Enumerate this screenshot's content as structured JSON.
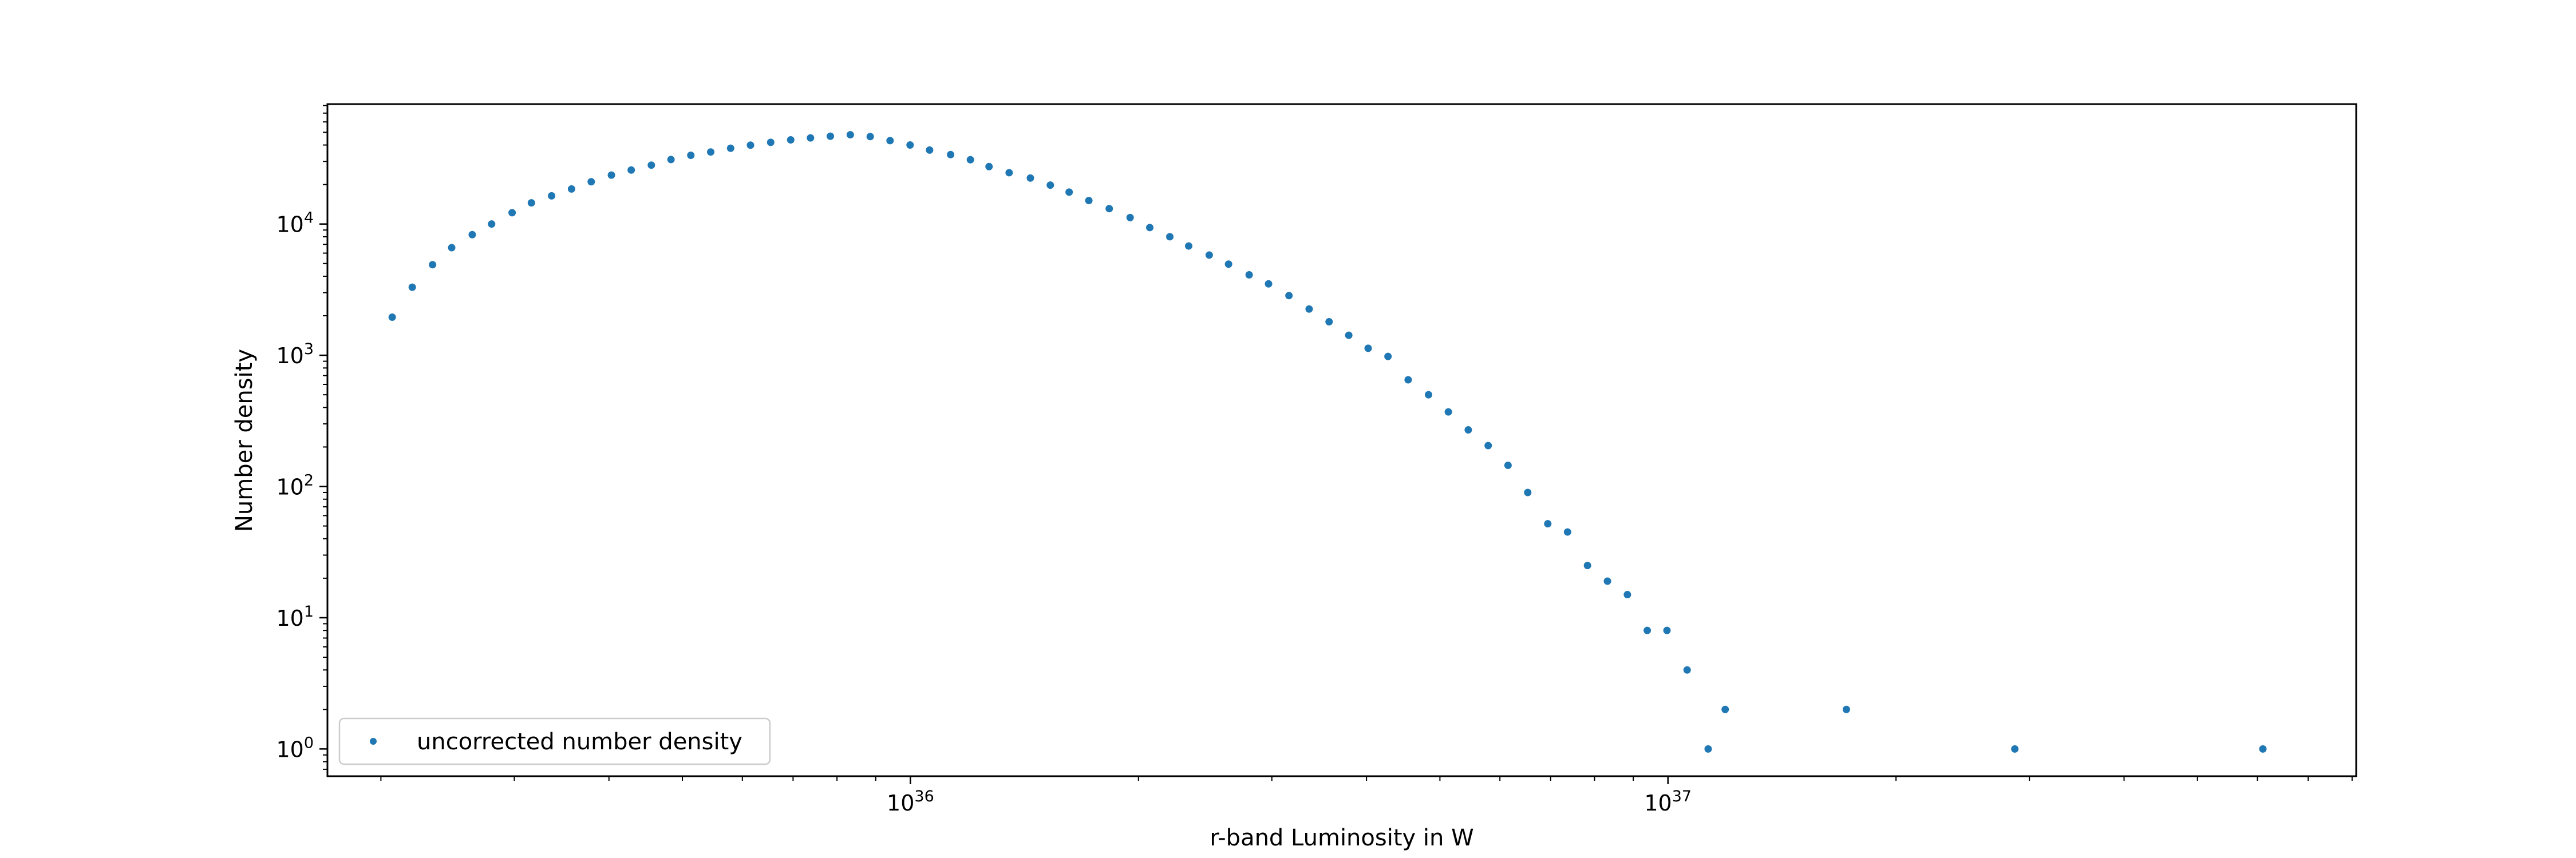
{
  "chart_data": {
    "type": "scatter",
    "xscale": "log",
    "yscale": "log",
    "xlabel": "r-band Luminosity in W",
    "ylabel": "Number density",
    "xlim": [
      1.7e+35,
      8.1e+37
    ],
    "ylim": [
      0.62,
      82000
    ],
    "grid": false,
    "legend_position": "lower-left",
    "marker_color": "#1f77b4",
    "x_ticks": [
      {
        "mantissa": "10",
        "exp": "36",
        "value": 1e+36
      },
      {
        "mantissa": "10",
        "exp": "37",
        "value": 1e+37
      }
    ],
    "y_ticks": [
      {
        "mantissa": "10",
        "exp": "0",
        "value": 1
      },
      {
        "mantissa": "10",
        "exp": "1",
        "value": 10
      },
      {
        "mantissa": "10",
        "exp": "2",
        "value": 100
      },
      {
        "mantissa": "10",
        "exp": "3",
        "value": 1000
      },
      {
        "mantissa": "10",
        "exp": "4",
        "value": 10000
      }
    ],
    "series": [
      {
        "name": "uncorrected number density",
        "points": [
          [
            2.07e+35,
            1950
          ],
          [
            2.2e+35,
            3300
          ],
          [
            2.34e+35,
            4900
          ],
          [
            2.48e+35,
            6600
          ],
          [
            2.64e+35,
            8300
          ],
          [
            2.8e+35,
            10000
          ],
          [
            2.98e+35,
            12200
          ],
          [
            3.16e+35,
            14500
          ],
          [
            3.36e+35,
            16400
          ],
          [
            3.57e+35,
            18500
          ],
          [
            3.79e+35,
            21000
          ],
          [
            4.03e+35,
            23600
          ],
          [
            4.28e+35,
            25800
          ],
          [
            4.55e+35,
            28100
          ],
          [
            4.83e+35,
            31000
          ],
          [
            5.13e+35,
            33400
          ],
          [
            5.45e+35,
            35400
          ],
          [
            5.79e+35,
            37800
          ],
          [
            6.15e+35,
            39900
          ],
          [
            6.54e+35,
            41900
          ],
          [
            6.95e+35,
            43800
          ],
          [
            7.38e+35,
            45300
          ],
          [
            7.84e+35,
            46700
          ],
          [
            8.33e+35,
            47900
          ],
          [
            8.85e+35,
            46400
          ],
          [
            9.4e+35,
            43200
          ],
          [
            9.99e+35,
            40000
          ],
          [
            1.06e+36,
            36600
          ],
          [
            1.13e+36,
            33800
          ],
          [
            1.2e+36,
            30900
          ],
          [
            1.27e+36,
            27400
          ],
          [
            1.35e+36,
            24600
          ],
          [
            1.44e+36,
            22400
          ],
          [
            1.53e+36,
            19800
          ],
          [
            1.62e+36,
            17500
          ],
          [
            1.72e+36,
            15100
          ],
          [
            1.83e+36,
            13100
          ],
          [
            1.95e+36,
            11200
          ],
          [
            2.07e+36,
            9400
          ],
          [
            2.2e+36,
            8000
          ],
          [
            2.33e+36,
            6800
          ],
          [
            2.48e+36,
            5800
          ],
          [
            2.63e+36,
            4950
          ],
          [
            2.8e+36,
            4100
          ],
          [
            2.97e+36,
            3500
          ],
          [
            3.16e+36,
            2850
          ],
          [
            3.36e+36,
            2250
          ],
          [
            3.57e+36,
            1800
          ],
          [
            3.79e+36,
            1420
          ],
          [
            4.02e+36,
            1130
          ],
          [
            4.27e+36,
            980
          ],
          [
            4.54e+36,
            650
          ],
          [
            4.83e+36,
            500
          ],
          [
            5.13e+36,
            370
          ],
          [
            5.45e+36,
            270
          ],
          [
            5.79e+36,
            205
          ],
          [
            6.15e+36,
            145
          ],
          [
            6.53e+36,
            90
          ],
          [
            6.94e+36,
            52
          ],
          [
            7.37e+36,
            45
          ],
          [
            7.83e+36,
            25
          ],
          [
            8.32e+36,
            19
          ],
          [
            8.84e+36,
            15
          ],
          [
            9.39e+36,
            8
          ],
          [
            9.97e+36,
            8
          ],
          [
            1.06e+37,
            4
          ],
          [
            1.13e+37,
            1
          ],
          [
            1.19e+37,
            2
          ],
          [
            1.72e+37,
            2
          ],
          [
            2.87e+37,
            1
          ],
          [
            6.1e+37,
            1
          ]
        ]
      }
    ]
  }
}
